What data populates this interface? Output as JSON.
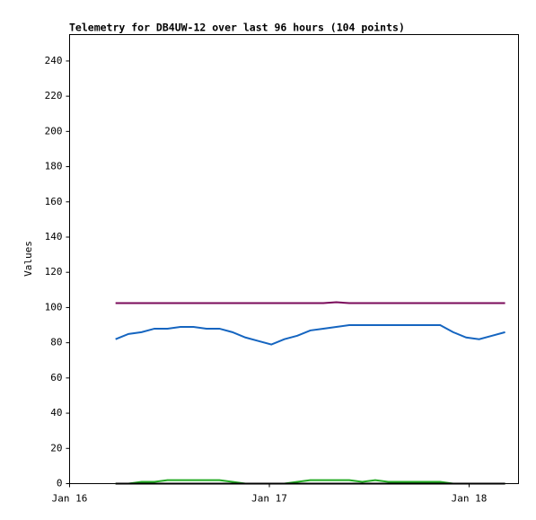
{
  "chart_data": {
    "type": "line",
    "title": "Telemetry for DB4UW-12 over last 96 hours (104 points)",
    "y_label": "Values",
    "x": [
      0.23,
      0.295,
      0.36,
      0.425,
      0.49,
      0.555,
      0.62,
      0.685,
      0.75,
      0.815,
      0.88,
      0.945,
      1.01,
      1.075,
      1.14,
      1.205,
      1.27,
      1.335,
      1.4,
      1.465,
      1.53,
      1.595,
      1.66,
      1.725,
      1.79,
      1.855,
      1.92,
      1.985,
      2.05,
      2.115,
      2.18
    ],
    "series": [
      {
        "color": "#1565c0",
        "values": [
          82,
          85,
          86,
          88,
          88,
          89,
          89,
          88,
          88,
          86,
          83,
          81,
          79,
          82,
          84,
          87,
          88,
          89,
          90,
          90,
          90,
          90,
          90,
          90,
          90,
          90,
          86,
          83,
          82,
          84,
          86
        ]
      },
      {
        "color": "#7a0a5a",
        "values": [
          102.5,
          102.5,
          102.5,
          102.5,
          102.5,
          102.5,
          102.5,
          102.5,
          102.5,
          102.5,
          102.5,
          102.5,
          102.5,
          102.5,
          102.5,
          102.5,
          102.5,
          103,
          102.5,
          102.5,
          102.5,
          102.5,
          102.5,
          102.5,
          102.5,
          102.5,
          102.5,
          102.5,
          102.5,
          102.5,
          102.5
        ]
      },
      {
        "color": "#22aa22",
        "values": [
          0,
          0,
          1,
          1,
          2,
          2,
          2,
          2,
          2,
          1,
          0,
          0,
          0,
          0,
          1,
          2,
          2,
          2,
          2,
          1,
          2,
          1,
          1,
          1,
          1,
          1,
          0,
          0,
          0,
          0,
          0
        ]
      },
      {
        "color": "#000000",
        "values": [
          0,
          0,
          0,
          0,
          0,
          0,
          0,
          0,
          0,
          0,
          0,
          0,
          0,
          0,
          0,
          0,
          0,
          0,
          0,
          0,
          0,
          0,
          0,
          0,
          0,
          0,
          0,
          0,
          0,
          0,
          0
        ]
      }
    ],
    "xlim": [
      0,
      2.247
    ],
    "xticks": [
      {
        "value": 0,
        "label": "Jan 16"
      },
      {
        "value": 1,
        "label": "Jan 17"
      },
      {
        "value": 2,
        "label": "Jan 18"
      }
    ],
    "ylim": [
      0,
      255
    ],
    "yticks": [
      0,
      20,
      40,
      60,
      80,
      100,
      120,
      140,
      160,
      180,
      200,
      220,
      240
    ]
  }
}
